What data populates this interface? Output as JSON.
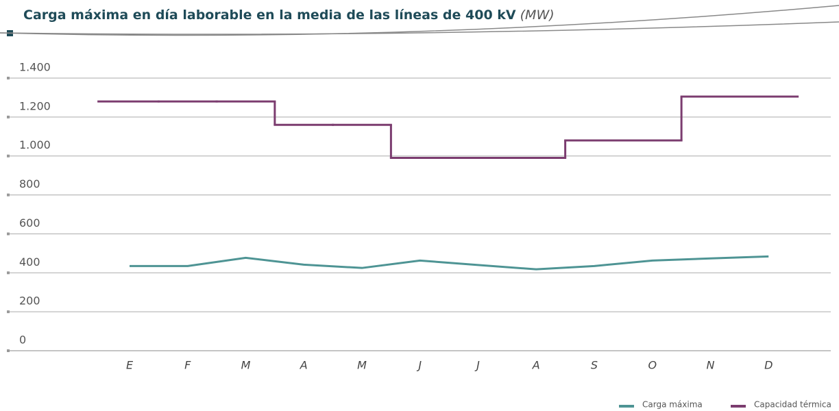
{
  "chart_data": {
    "type": "line",
    "title": "Carga máxima en día laborable en la media de las líneas de 400 kV",
    "unit": "(MW)",
    "categories": [
      "E",
      "F",
      "M",
      "A",
      "M",
      "J",
      "J",
      "A",
      "S",
      "O",
      "N",
      "D"
    ],
    "series": [
      {
        "name": "Carga máxima",
        "color": "#4e9494",
        "style": "line",
        "values": [
          435,
          435,
          477,
          442,
          425,
          463,
          440,
          418,
          435,
          463,
          474,
          484
        ]
      },
      {
        "name": "Capacidad térmica",
        "color": "#7b3c6f",
        "style": "step",
        "values": [
          1280,
          1280,
          1280,
          1160,
          1160,
          990,
          990,
          990,
          1080,
          1080,
          1305,
          1305
        ]
      }
    ],
    "ylim": [
      0,
      1400
    ],
    "yticks": [
      0,
      200,
      400,
      600,
      800,
      {
        "value": 1000,
        "label": "1.000"
      },
      {
        "value": 1200,
        "label": "1.200"
      },
      {
        "value": 1400,
        "label": "1.400"
      }
    ],
    "grid": true,
    "legend": "bottom-right"
  }
}
